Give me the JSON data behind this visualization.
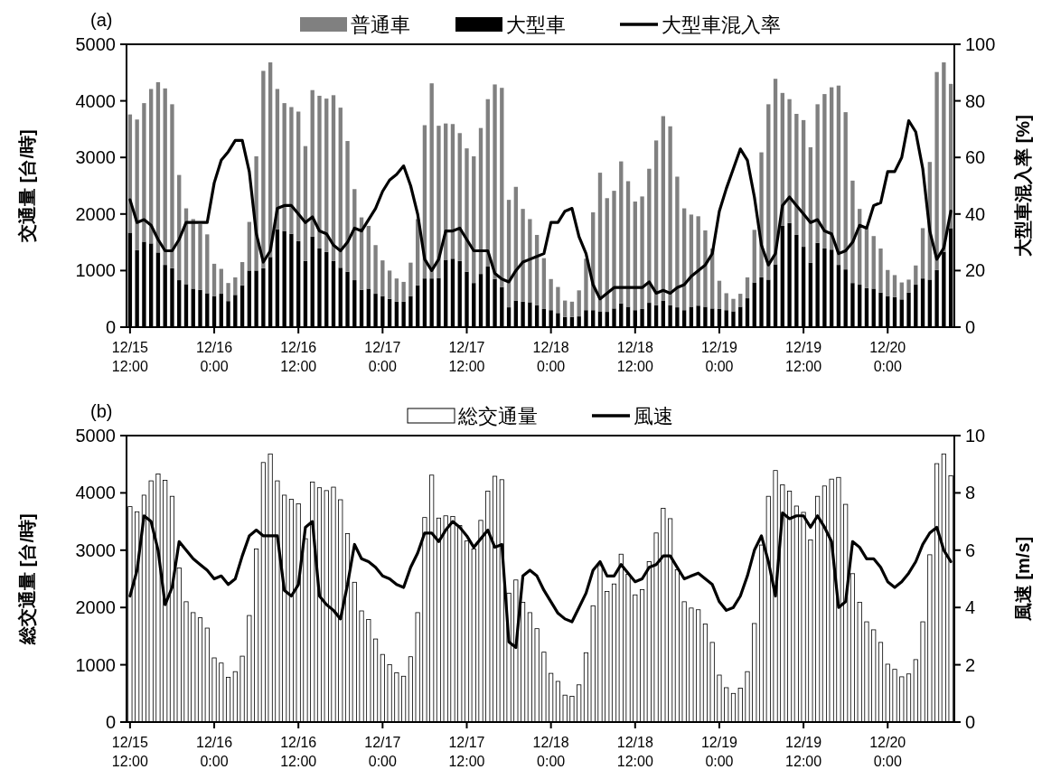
{
  "chart_data": [
    {
      "type": "bar",
      "title": "(a)",
      "ylabel": "交通量 [台/時]",
      "y2label": "大型車混入率 [%]",
      "stacked": true,
      "legend": "top",
      "categories": [
        "12/15\n12:00",
        null,
        null,
        null,
        null,
        null,
        null,
        null,
        null,
        null,
        null,
        null,
        "12/16\n0:00",
        null,
        null,
        null,
        null,
        null,
        null,
        null,
        null,
        null,
        null,
        null,
        "12/16\n12:00",
        null,
        null,
        null,
        null,
        null,
        null,
        null,
        null,
        null,
        null,
        null,
        "12/17\n0:00",
        null,
        null,
        null,
        null,
        null,
        null,
        null,
        null,
        null,
        null,
        null,
        "12/17\n12:00",
        null,
        null,
        null,
        null,
        null,
        null,
        null,
        null,
        null,
        null,
        null,
        "12/18\n0:00",
        null,
        null,
        null,
        null,
        null,
        null,
        null,
        null,
        null,
        null,
        null,
        "12/18\n12:00",
        null,
        null,
        null,
        null,
        null,
        null,
        null,
        null,
        null,
        null,
        null,
        "12/19\n0:00",
        null,
        null,
        null,
        null,
        null,
        null,
        null,
        null,
        null,
        null,
        null,
        "12/19\n12:00",
        null,
        null,
        null,
        null,
        null,
        null,
        null,
        null,
        null,
        null,
        null,
        "12/20\n0:00",
        null,
        null,
        null,
        null,
        null,
        null,
        null,
        null,
        null
      ],
      "ylim": [
        0,
        5000
      ],
      "yticks": [
        0,
        1000,
        2000,
        3000,
        4000,
        5000
      ],
      "y2lim": [
        0,
        100
      ],
      "y2ticks": [
        0,
        20,
        40,
        60,
        80,
        100
      ],
      "series": [
        {
          "name": "大型車",
          "color": "#000000",
          "values": [
            1670,
            1360,
            1510,
            1480,
            1320,
            1100,
            1040,
            830,
            760,
            680,
            660,
            600,
            550,
            590,
            460,
            570,
            740,
            1000,
            1000,
            1040,
            1240,
            1730,
            1700,
            1650,
            1520,
            1170,
            1600,
            1390,
            1330,
            1170,
            1050,
            980,
            830,
            660,
            680,
            590,
            550,
            500,
            450,
            450,
            550,
            740,
            860,
            860,
            870,
            1190,
            1210,
            1170,
            980,
            780,
            940,
            1070,
            850,
            710,
            350,
            470,
            450,
            440,
            390,
            320,
            300,
            250,
            180,
            180,
            190,
            300,
            300,
            280,
            270,
            330,
            420,
            360,
            300,
            320,
            430,
            390,
            470,
            390,
            350,
            300,
            360,
            380,
            360,
            330,
            320,
            300,
            280,
            360,
            510,
            790,
            880,
            840,
            1110,
            1790,
            1840,
            1630,
            1420,
            1140,
            1490,
            1390,
            1370,
            1100,
            1020,
            780,
            750,
            690,
            680,
            610,
            550,
            530,
            490,
            610,
            750,
            860,
            840,
            1010,
            1330,
            1750
          ]
        },
        {
          "name": "普通車",
          "color": "#808080",
          "values": [
            2090,
            2310,
            2450,
            2730,
            3010,
            3120,
            2900,
            1860,
            1340,
            1230,
            1160,
            1040,
            570,
            440,
            320,
            310,
            410,
            860,
            2020,
            3490,
            3440,
            2480,
            2260,
            2240,
            2290,
            2030,
            2590,
            2700,
            2710,
            2930,
            2830,
            2310,
            1610,
            1280,
            1110,
            860,
            630,
            500,
            410,
            350,
            590,
            1170,
            2710,
            3450,
            2690,
            2410,
            2380,
            2260,
            2180,
            2240,
            2580,
            2960,
            3440,
            3520,
            1900,
            2010,
            1640,
            1470,
            1240,
            900,
            550,
            460,
            290,
            270,
            460,
            910,
            1730,
            2450,
            2010,
            2080,
            2510,
            2220,
            1920,
            1990,
            2370,
            2910,
            3260,
            3160,
            2310,
            1800,
            1630,
            1580,
            1350,
            1060,
            500,
            300,
            220,
            230,
            370,
            930,
            2210,
            3100,
            3280,
            2350,
            2190,
            2140,
            2240,
            2040,
            2450,
            2730,
            2870,
            3170,
            2780,
            1810,
            1340,
            1060,
            930,
            780,
            460,
            390,
            300,
            230,
            340,
            890,
            2080,
            3500,
            3350,
            2550
          ]
        },
        {
          "name": "大型車混入率",
          "type": "line",
          "axis": "y2",
          "color": "#000000",
          "values": [
            45,
            37,
            38,
            36,
            31,
            27,
            27,
            31,
            37,
            37,
            37,
            37,
            51,
            59,
            62,
            66,
            66,
            55,
            33,
            23,
            27,
            42,
            43,
            43,
            40,
            37,
            39,
            34,
            33,
            29,
            27,
            30,
            35,
            34,
            38,
            42,
            48,
            52,
            54,
            57,
            50,
            40,
            24,
            20,
            24,
            34,
            34,
            35,
            31,
            27,
            27,
            27,
            19,
            17,
            16,
            20,
            23,
            24,
            25,
            26,
            37,
            37,
            41,
            42,
            32,
            26,
            15,
            10,
            12,
            14,
            14,
            14,
            14,
            14,
            16,
            12,
            13,
            12,
            14,
            15,
            18,
            20,
            22,
            26,
            41,
            49,
            56,
            63,
            59,
            46,
            29,
            22,
            26,
            43,
            46,
            43,
            40,
            37,
            38,
            34,
            33,
            26,
            27,
            30,
            36,
            35,
            43,
            44,
            55,
            55,
            60,
            73,
            69,
            56,
            34,
            24,
            28,
            41
          ]
        }
      ]
    },
    {
      "type": "bar",
      "title": "(b)",
      "ylabel": "総交通量 [台/時]",
      "y2label": "風速 [m/s]",
      "legend": "top",
      "categories": [
        "12/15\n12:00",
        null,
        null,
        null,
        null,
        null,
        null,
        null,
        null,
        null,
        null,
        null,
        "12/16\n0:00",
        null,
        null,
        null,
        null,
        null,
        null,
        null,
        null,
        null,
        null,
        null,
        "12/16\n12:00",
        null,
        null,
        null,
        null,
        null,
        null,
        null,
        null,
        null,
        null,
        null,
        "12/17\n0:00",
        null,
        null,
        null,
        null,
        null,
        null,
        null,
        null,
        null,
        null,
        null,
        "12/17\n12:00",
        null,
        null,
        null,
        null,
        null,
        null,
        null,
        null,
        null,
        null,
        null,
        "12/18\n0:00",
        null,
        null,
        null,
        null,
        null,
        null,
        null,
        null,
        null,
        null,
        null,
        "12/18\n12:00",
        null,
        null,
        null,
        null,
        null,
        null,
        null,
        null,
        null,
        null,
        null,
        "12/19\n0:00",
        null,
        null,
        null,
        null,
        null,
        null,
        null,
        null,
        null,
        null,
        null,
        "12/19\n12:00",
        null,
        null,
        null,
        null,
        null,
        null,
        null,
        null,
        null,
        null,
        null,
        "12/20\n0:00",
        null,
        null,
        null,
        null,
        null,
        null,
        null,
        null,
        null
      ],
      "ylim": [
        0,
        5000
      ],
      "yticks": [
        0,
        1000,
        2000,
        3000,
        4000,
        5000
      ],
      "y2lim": [
        0,
        10
      ],
      "y2ticks": [
        0,
        2,
        4,
        6,
        8,
        10
      ],
      "series": [
        {
          "name": "総交通量",
          "color": "#ffffff",
          "values": [
            3760,
            3670,
            3960,
            4210,
            4330,
            4220,
            3940,
            2690,
            2100,
            1910,
            1820,
            1640,
            1120,
            1030,
            780,
            880,
            1150,
            1860,
            3020,
            4530,
            4680,
            4210,
            3960,
            3890,
            3810,
            3200,
            4190,
            4090,
            4040,
            4100,
            3880,
            3290,
            2440,
            1940,
            1790,
            1450,
            1180,
            1000,
            860,
            800,
            1140,
            1910,
            3570,
            4310,
            3560,
            3600,
            3590,
            3430,
            3160,
            3020,
            3520,
            4030,
            4290,
            4230,
            2250,
            2480,
            2090,
            1910,
            1630,
            1220,
            850,
            710,
            470,
            450,
            650,
            1210,
            2030,
            2730,
            2280,
            2410,
            2930,
            2580,
            2220,
            2310,
            2800,
            3300,
            3730,
            3550,
            2660,
            2100,
            1990,
            1960,
            1710,
            1390,
            820,
            600,
            500,
            590,
            880,
            1720,
            3090,
            3940,
            4390,
            4140,
            4030,
            3770,
            3660,
            3180,
            3940,
            4120,
            4240,
            4270,
            3800,
            2590,
            2090,
            1750,
            1610,
            1390,
            1010,
            920,
            790,
            840,
            1090,
            1750,
            2920,
            4510,
            4680,
            4300
          ]
        },
        {
          "name": "風速",
          "type": "line",
          "axis": "y2",
          "color": "#000000",
          "values": [
            4.4,
            5.3,
            7.2,
            7.0,
            6.0,
            4.1,
            4.7,
            6.3,
            6.0,
            5.7,
            5.5,
            5.3,
            5.0,
            5.1,
            4.8,
            5.0,
            5.8,
            6.5,
            6.7,
            6.5,
            6.5,
            6.5,
            4.6,
            4.4,
            4.8,
            6.8,
            7.0,
            4.4,
            4.1,
            3.9,
            3.6,
            4.8,
            6.2,
            5.7,
            5.6,
            5.4,
            5.1,
            5.0,
            4.8,
            4.7,
            5.4,
            5.9,
            6.6,
            6.6,
            6.3,
            6.7,
            7.0,
            6.8,
            6.5,
            6.1,
            6.4,
            6.7,
            6.1,
            6.2,
            2.8,
            2.6,
            5.1,
            5.3,
            5.1,
            4.6,
            4.2,
            3.8,
            3.6,
            3.5,
            4.0,
            4.5,
            5.3,
            5.6,
            5.1,
            5.1,
            5.5,
            5.2,
            4.9,
            5.0,
            5.4,
            5.5,
            5.8,
            5.8,
            5.4,
            5.0,
            5.1,
            5.2,
            5.0,
            4.8,
            4.2,
            3.9,
            4.0,
            4.4,
            5.1,
            6.0,
            6.5,
            5.6,
            4.4,
            7.3,
            7.1,
            7.2,
            7.2,
            6.8,
            7.2,
            6.8,
            6.3,
            4.0,
            4.2,
            6.3,
            6.1,
            5.7,
            5.7,
            5.4,
            4.9,
            4.7,
            4.9,
            5.2,
            5.6,
            6.2,
            6.6,
            6.8,
            6.0,
            5.6
          ]
        }
      ]
    }
  ]
}
